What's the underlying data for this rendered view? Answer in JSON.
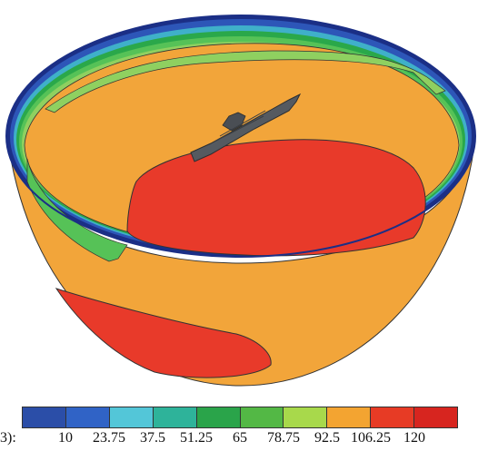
{
  "figure": {
    "colors": {
      "outer": "#f2a53a",
      "hot": "#e83a2a",
      "rimBlue": "#2d56b8",
      "rimDark": "#1b2f86",
      "green1": "#2aa84a",
      "green2": "#56c257",
      "green3": "#8fd060",
      "ship": "#555a60"
    }
  },
  "legend": {
    "unit_label": "3):",
    "ticks": [
      "10",
      "23.75",
      "37.5",
      "51.25",
      "65",
      "78.75",
      "92.5",
      "106.25",
      "120"
    ],
    "swatches": [
      "#2b4ea8",
      "#3063c6",
      "#53c6d8",
      "#2eb39a",
      "#2aa44a",
      "#53b845",
      "#a8d94b",
      "#f3a431",
      "#e73b25",
      "#d7251f"
    ]
  }
}
